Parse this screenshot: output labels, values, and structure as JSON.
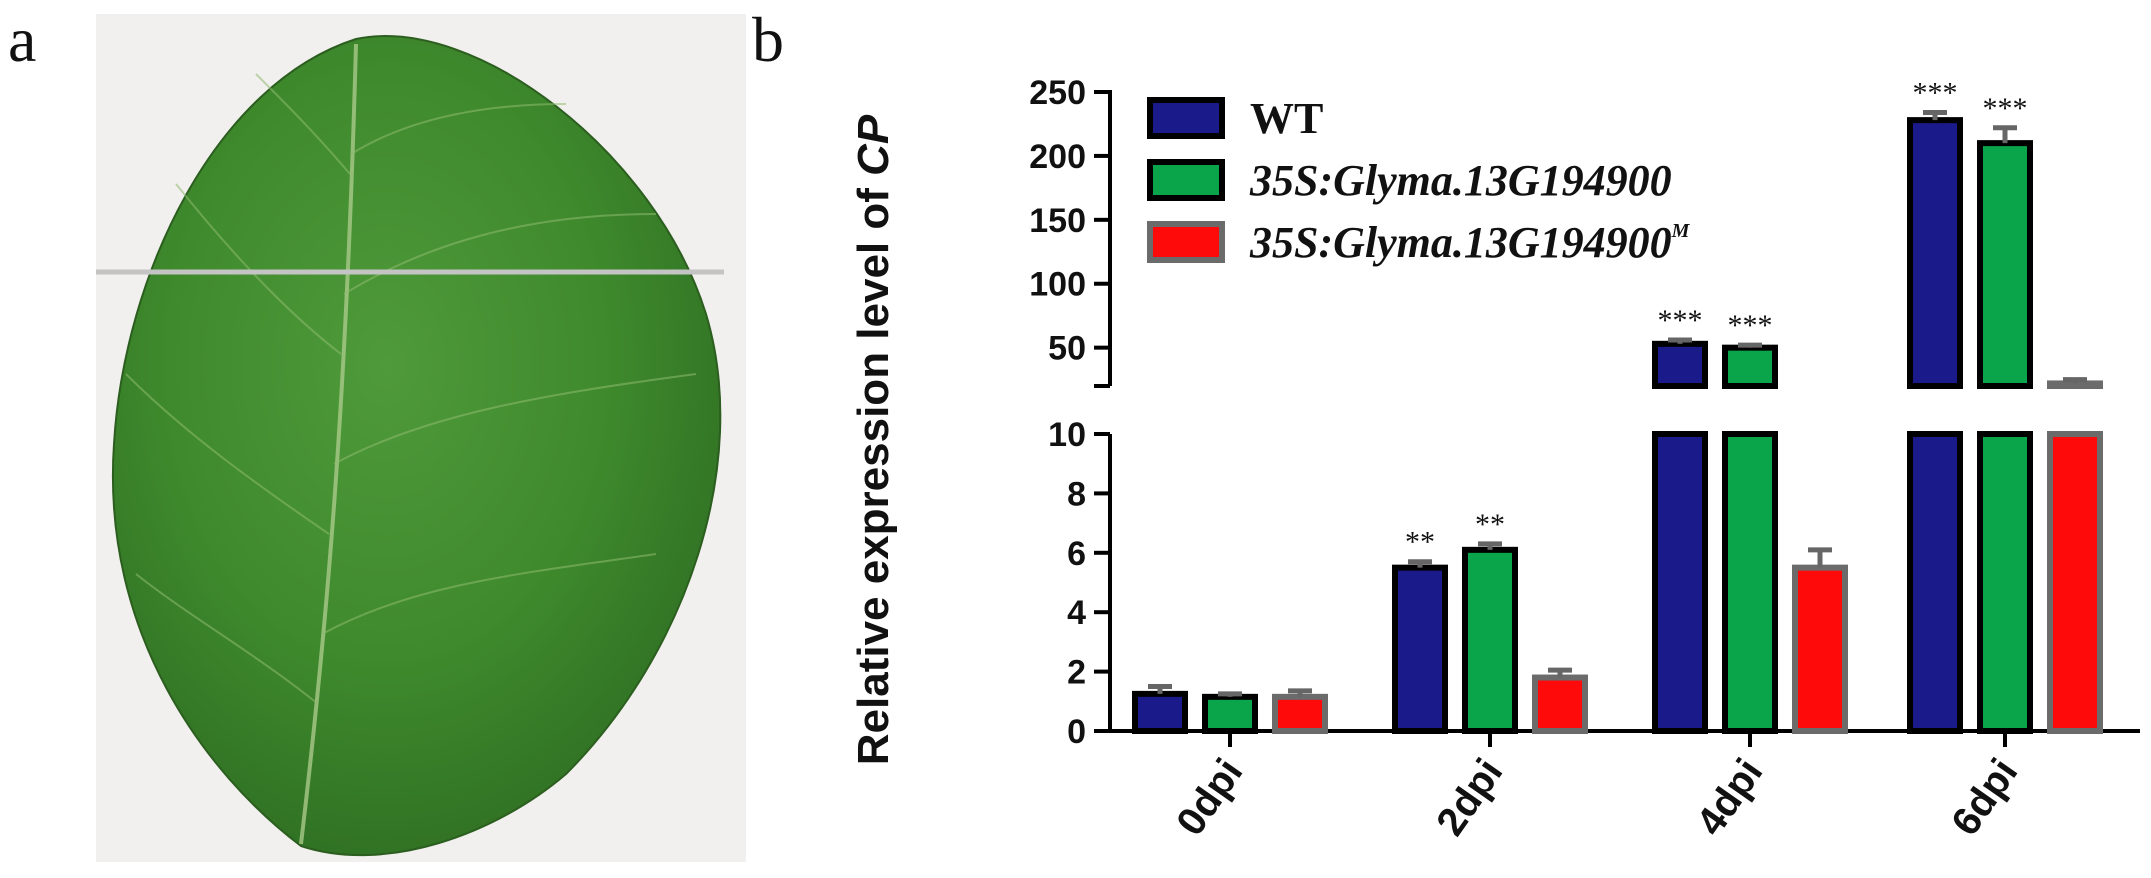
{
  "panel_labels": {
    "a": "a",
    "b": "b"
  },
  "panel_a": {
    "subject": "Soybean leaf photograph with horizontal cut line"
  },
  "chart_data": {
    "type": "bar",
    "title": "",
    "ylabel_prefix": "Relative expression level of ",
    "ylabel_gene": "CP",
    "xlabel": "",
    "categories": [
      "0dpi",
      "2dpi",
      "4dpi",
      "6dpi"
    ],
    "series": [
      {
        "name": "WT",
        "name_main": "WT",
        "name_sup": "",
        "values": [
          1.25,
          5.5,
          53,
          228
        ],
        "errors": [
          0.25,
          0.2,
          3,
          6
        ],
        "significance": [
          "",
          "**",
          "***",
          "***"
        ],
        "color": "#1a1a8a"
      },
      {
        "name": "35S:Glyma.13G194900",
        "name_main": "35S:Glyma.13G194900",
        "name_sup": "",
        "values": [
          1.15,
          6.1,
          50,
          210
        ],
        "errors": [
          0.1,
          0.2,
          2,
          12
        ],
        "significance": [
          "",
          "**",
          "***",
          "***"
        ],
        "color": "#0aa54a"
      },
      {
        "name": "35S:Glyma.13G194900M",
        "name_main": "35S:Glyma.13G194900",
        "name_sup": "M",
        "values": [
          1.15,
          1.8,
          5.5,
          22
        ],
        "errors": [
          0.2,
          0.25,
          0.6,
          3
        ],
        "significance": [
          "",
          "",
          "",
          ""
        ],
        "color": "#ff0a0a"
      }
    ],
    "y_axis_lower": {
      "range": [
        0,
        10
      ],
      "ticks": [
        "0",
        "2",
        "4",
        "6",
        "8",
        "10"
      ]
    },
    "y_axis_upper": {
      "range": [
        20,
        250
      ],
      "ticks": [
        "50",
        "100",
        "150",
        "200",
        "250"
      ]
    },
    "axis_break": true,
    "legend_position": "top-left",
    "error_bar_color": "#666666",
    "edge_color": "#000000"
  }
}
